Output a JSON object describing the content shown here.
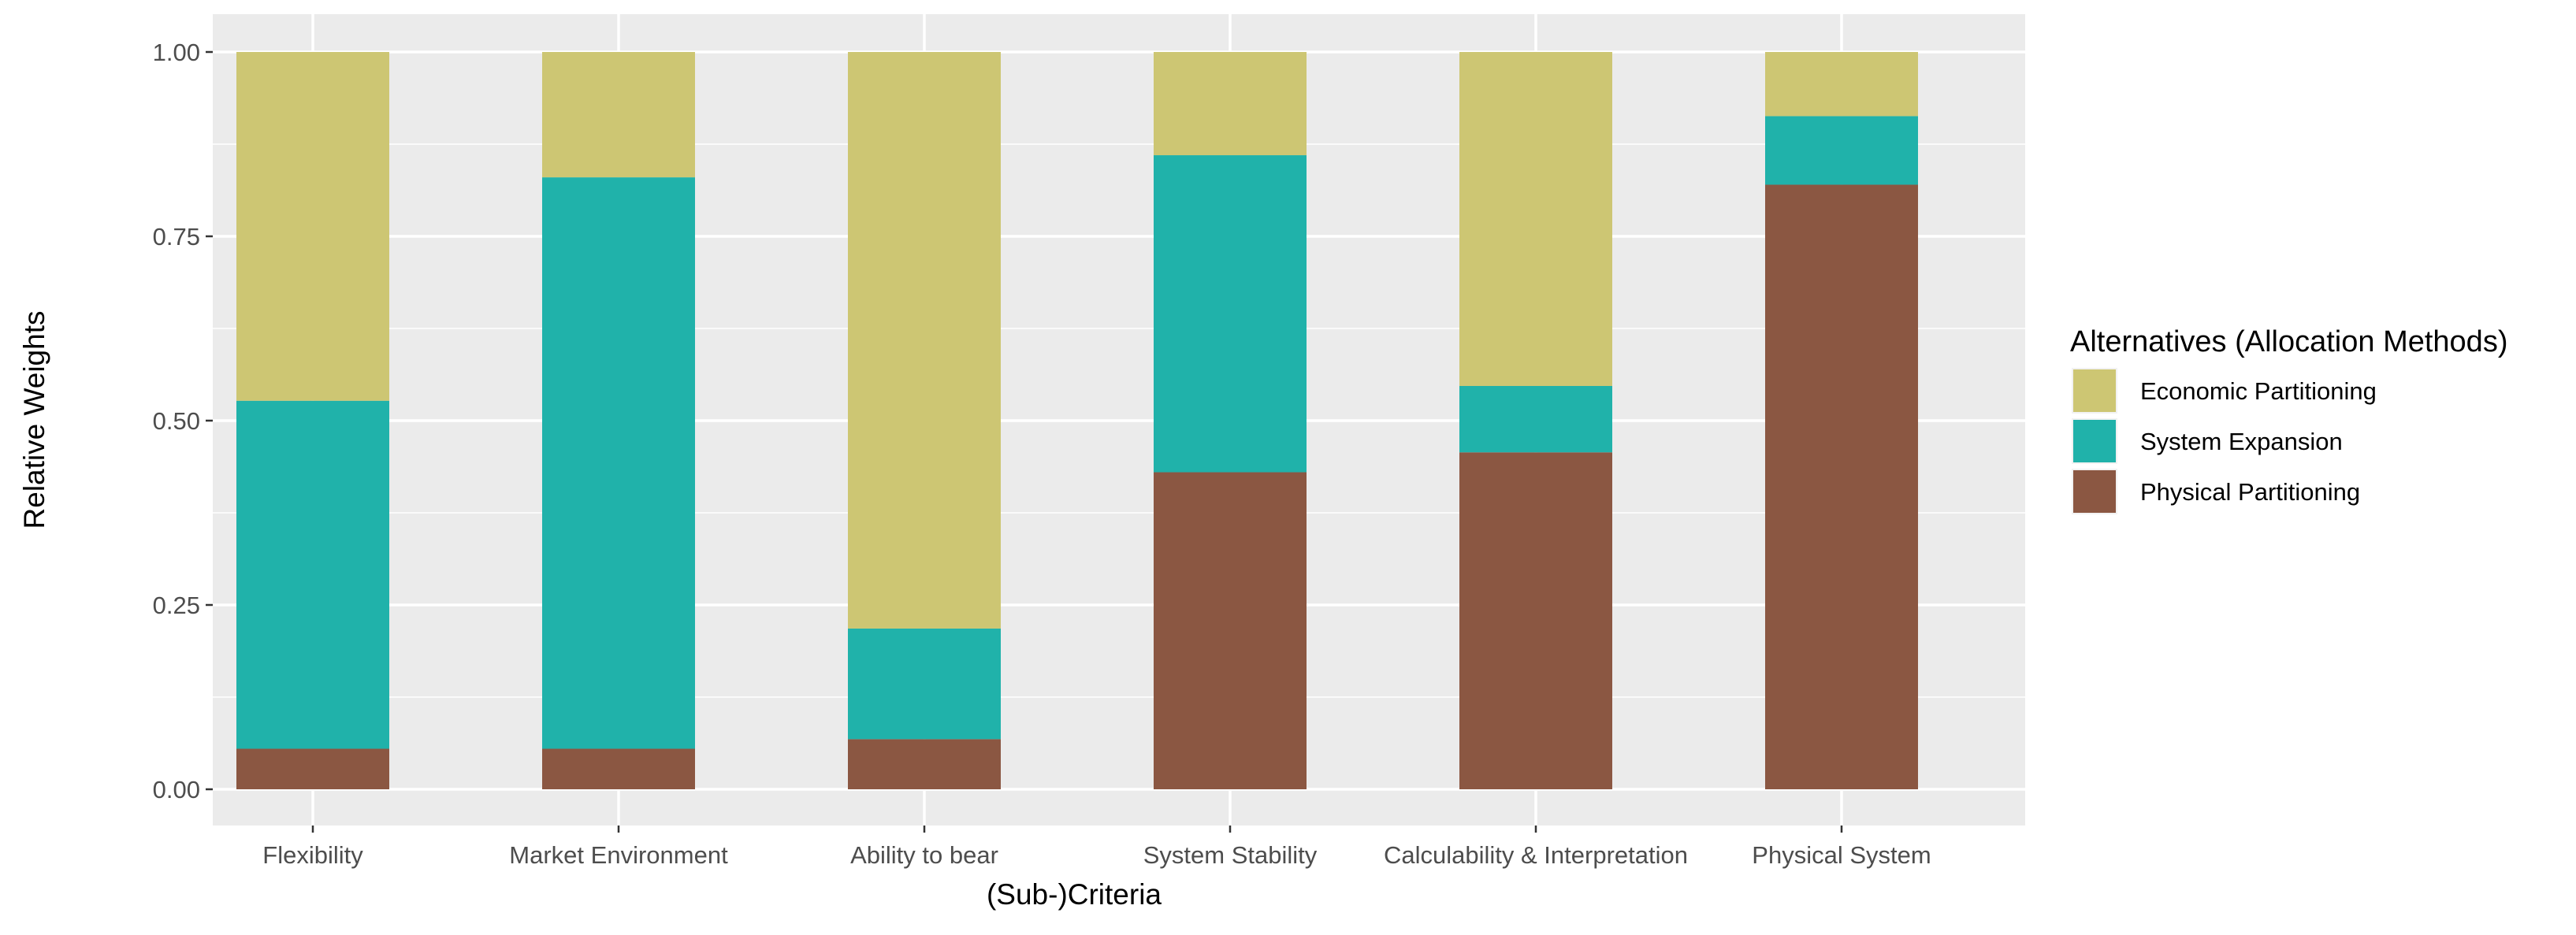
{
  "chart_data": {
    "type": "bar",
    "stacked": true,
    "title": "",
    "xlabel": "(Sub-)Criteria",
    "ylabel": "Relative Weights",
    "ylim": [
      0,
      1
    ],
    "yticks": [
      0,
      0.25,
      0.5,
      0.75,
      1
    ],
    "ytick_labels": [
      "0.00",
      "0.25",
      "0.50",
      "0.75",
      "1.00"
    ],
    "categories": [
      "Flexibility",
      "Market Environment",
      "Ability to bear",
      "System Stability",
      "Calculability & Interpretation",
      "Physical System"
    ],
    "series": [
      {
        "name": "Physical Partitioning",
        "color": "#8B5742",
        "values": [
          0.055,
          0.055,
          0.068,
          0.43,
          0.457,
          0.82
        ]
      },
      {
        "name": "System Expansion",
        "color": "#20B2AA",
        "values": [
          0.472,
          0.775,
          0.15,
          0.43,
          0.09,
          0.093
        ]
      },
      {
        "name": "Economic Partitioning",
        "color": "#CDC673",
        "values": [
          0.473,
          0.17,
          0.782,
          0.14,
          0.453,
          0.087
        ]
      }
    ],
    "legend": {
      "title": "Alternatives (Allocation Methods)",
      "placement": "right",
      "order": [
        "Economic Partitioning",
        "System Expansion",
        "Physical Partitioning"
      ]
    },
    "grid": true,
    "panel_background": "#EBEBEB",
    "grid_color": "#FFFFFF"
  }
}
